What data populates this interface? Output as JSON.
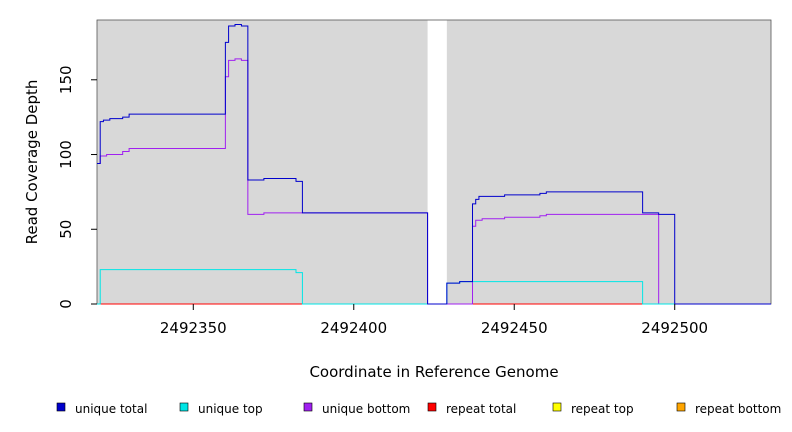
{
  "chart_data": {
    "type": "line",
    "xlabel": "Coordinate in Reference Genome",
    "ylabel": "Read Coverage Depth",
    "xlim": [
      2492320,
      2492530
    ],
    "ylim": [
      0,
      190
    ],
    "x_ticks": [
      2492350,
      2492400,
      2492450,
      2492500
    ],
    "y_ticks": [
      0,
      50,
      100,
      150
    ],
    "grid": false,
    "legend_position": "bottom",
    "plot_background": "#d8d8d8",
    "gap_regions": [
      [
        2492423,
        2492429
      ]
    ],
    "series": [
      {
        "name": "unique total",
        "color": "#0000cc",
        "points": [
          [
            2492320,
            94
          ],
          [
            2492321,
            94
          ],
          [
            2492321,
            122
          ],
          [
            2492322,
            122
          ],
          [
            2492322,
            123
          ],
          [
            2492324,
            123
          ],
          [
            2492324,
            124
          ],
          [
            2492328,
            124
          ],
          [
            2492328,
            125
          ],
          [
            2492330,
            125
          ],
          [
            2492330,
            127
          ],
          [
            2492360,
            127
          ],
          [
            2492360,
            175
          ],
          [
            2492361,
            175
          ],
          [
            2492361,
            186
          ],
          [
            2492363,
            186
          ],
          [
            2492363,
            187
          ],
          [
            2492365,
            187
          ],
          [
            2492365,
            186
          ],
          [
            2492367,
            186
          ],
          [
            2492367,
            83
          ],
          [
            2492372,
            83
          ],
          [
            2492372,
            84
          ],
          [
            2492382,
            84
          ],
          [
            2492382,
            82
          ],
          [
            2492384,
            82
          ],
          [
            2492384,
            61
          ],
          [
            2492423,
            61
          ],
          [
            2492423,
            0
          ],
          [
            2492429,
            0
          ],
          [
            2492429,
            14
          ],
          [
            2492433,
            14
          ],
          [
            2492433,
            15
          ],
          [
            2492437,
            15
          ],
          [
            2492437,
            67
          ],
          [
            2492438,
            67
          ],
          [
            2492438,
            70
          ],
          [
            2492439,
            70
          ],
          [
            2492439,
            72
          ],
          [
            2492447,
            72
          ],
          [
            2492447,
            73
          ],
          [
            2492458,
            73
          ],
          [
            2492458,
            74
          ],
          [
            2492460,
            74
          ],
          [
            2492460,
            75
          ],
          [
            2492490,
            75
          ],
          [
            2492490,
            61
          ],
          [
            2492495,
            61
          ],
          [
            2492495,
            60
          ],
          [
            2492500,
            60
          ],
          [
            2492500,
            0
          ],
          [
            2492530,
            0
          ]
        ]
      },
      {
        "name": "unique top",
        "color": "#00e5e5",
        "points": [
          [
            2492320,
            0
          ],
          [
            2492321,
            0
          ],
          [
            2492321,
            23
          ],
          [
            2492382,
            23
          ],
          [
            2492382,
            21
          ],
          [
            2492384,
            21
          ],
          [
            2492384,
            0
          ],
          [
            2492423,
            0
          ],
          [
            2492429,
            0
          ],
          [
            2492429,
            14
          ],
          [
            2492433,
            14
          ],
          [
            2492433,
            15
          ],
          [
            2492490,
            15
          ],
          [
            2492490,
            0
          ],
          [
            2492530,
            0
          ]
        ]
      },
      {
        "name": "unique bottom",
        "color": "#a020f0",
        "points": [
          [
            2492320,
            94
          ],
          [
            2492321,
            94
          ],
          [
            2492321,
            99
          ],
          [
            2492323,
            99
          ],
          [
            2492323,
            100
          ],
          [
            2492328,
            100
          ],
          [
            2492328,
            102
          ],
          [
            2492330,
            102
          ],
          [
            2492330,
            104
          ],
          [
            2492360,
            104
          ],
          [
            2492360,
            152
          ],
          [
            2492361,
            152
          ],
          [
            2492361,
            163
          ],
          [
            2492363,
            163
          ],
          [
            2492363,
            164
          ],
          [
            2492365,
            164
          ],
          [
            2492365,
            163
          ],
          [
            2492367,
            163
          ],
          [
            2492367,
            60
          ],
          [
            2492372,
            60
          ],
          [
            2492372,
            61
          ],
          [
            2492423,
            61
          ],
          [
            2492423,
            0
          ],
          [
            2492437,
            0
          ],
          [
            2492437,
            52
          ],
          [
            2492438,
            52
          ],
          [
            2492438,
            56
          ],
          [
            2492440,
            56
          ],
          [
            2492440,
            57
          ],
          [
            2492447,
            57
          ],
          [
            2492447,
            58
          ],
          [
            2492458,
            58
          ],
          [
            2492458,
            59
          ],
          [
            2492460,
            59
          ],
          [
            2492460,
            60
          ],
          [
            2492495,
            60
          ],
          [
            2492495,
            0
          ],
          [
            2492530,
            0
          ]
        ]
      },
      {
        "name": "repeat total",
        "color": "#ff0000",
        "points": [
          [
            2492320,
            0
          ],
          [
            2492530,
            0
          ]
        ]
      },
      {
        "name": "repeat top",
        "color": "#ffff00",
        "points": [
          [
            2492320,
            0
          ],
          [
            2492530,
            0
          ]
        ]
      },
      {
        "name": "repeat bottom",
        "color": "#ffa500",
        "points": [
          [
            2492320,
            0
          ],
          [
            2492530,
            0
          ]
        ]
      }
    ]
  }
}
